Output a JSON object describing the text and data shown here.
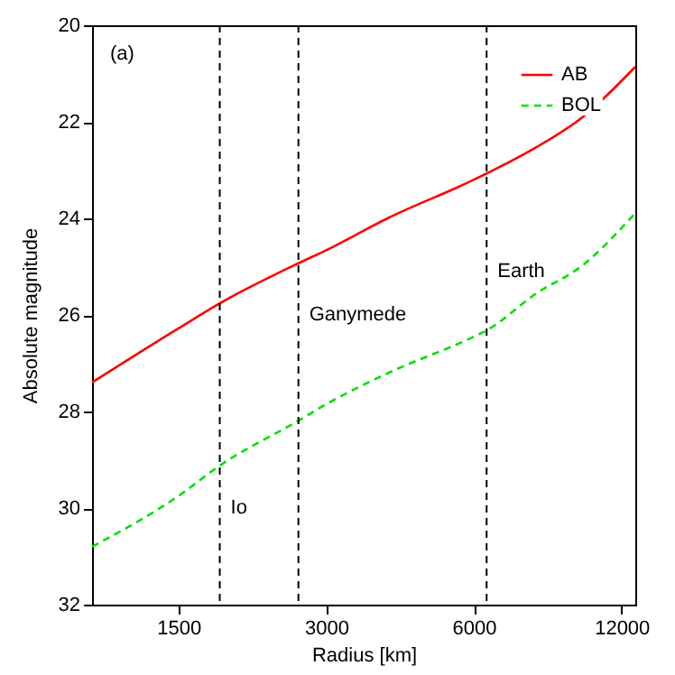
{
  "chart_data": {
    "type": "line",
    "xlabel": "Radius [km]",
    "ylabel": "Absolute magnitude",
    "x": [
      1000,
      1500,
      1821,
      2634,
      3000,
      4000,
      6000,
      6371,
      8000,
      10000,
      12800
    ],
    "series": [
      {
        "name": "AB",
        "color": "#ff0000",
        "line_style": "solid",
        "values": [
          27.4,
          26.28,
          25.76,
          24.93,
          24.66,
          24.0,
          23.2,
          23.07,
          22.54,
          21.9,
          20.86
        ]
      },
      {
        "name": "BOL",
        "color": "#00e000",
        "line_style": "dashed",
        "values": [
          30.8,
          29.75,
          29.12,
          28.19,
          27.85,
          27.21,
          26.45,
          26.32,
          25.57,
          24.97,
          23.89
        ]
      }
    ],
    "log": "x",
    "xlim": [
      1000,
      12800
    ],
    "xticks": [
      1500,
      3000,
      6000,
      12000
    ],
    "ylim": [
      32,
      20
    ],
    "yticks": [
      20,
      22,
      24,
      26,
      28,
      30,
      32
    ],
    "grid": false,
    "legend": "top right",
    "marker": "none",
    "ref_lines": [
      {
        "axis": "x",
        "value": 1821,
        "color": "#000000",
        "line_style": "dashed"
      },
      {
        "axis": "x",
        "value": 2634,
        "color": "#000000",
        "line_style": "dashed"
      },
      {
        "axis": "x",
        "value": 6371,
        "color": "#000000",
        "line_style": "dashed"
      }
    ],
    "annotations": [
      "(a)",
      {
        "text": "Io",
        "x": 1821,
        "y": 30
      },
      {
        "text": "Ganymede",
        "x": 2634,
        "y": 26
      },
      {
        "text": "Earth",
        "x": 6371,
        "y": 25.1
      }
    ]
  }
}
